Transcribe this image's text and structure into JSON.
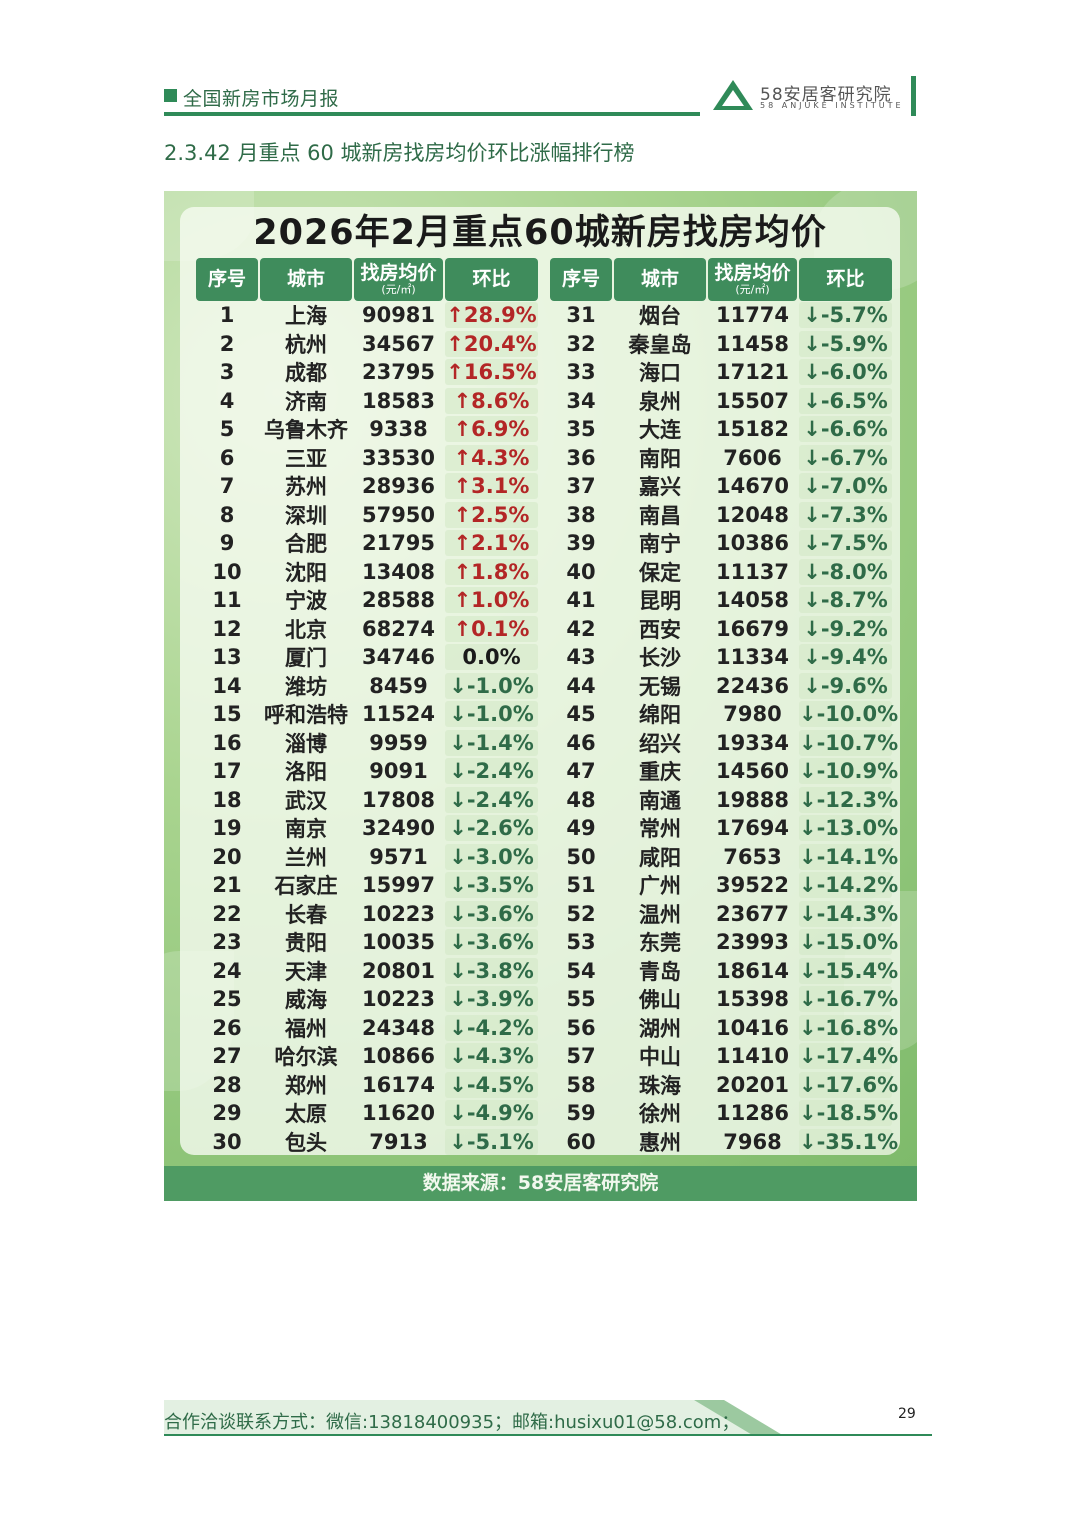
{
  "header": {
    "report_title": "全国新房市场月报",
    "logo_cn": "58安居客研究院",
    "logo_en": "58 ANJUKE INSTITUTE",
    "section_title": "2.3.42 月重点 60 城新房找房均价环比涨幅排行榜",
    "brand_color": "#2f8a58"
  },
  "infographic": {
    "title": "2026年2月重点60城新房找房均价",
    "columns": {
      "rank": "序号",
      "city": "城市",
      "price": "找房均价",
      "price_unit": "(元/㎡)",
      "change": "环比"
    },
    "rows": [
      {
        "rank": "1",
        "city": "上海",
        "price": "90981",
        "change": "↑28.9%",
        "dir": "up"
      },
      {
        "rank": "2",
        "city": "杭州",
        "price": "34567",
        "change": "↑20.4%",
        "dir": "up"
      },
      {
        "rank": "3",
        "city": "成都",
        "price": "23795",
        "change": "↑16.5%",
        "dir": "up"
      },
      {
        "rank": "4",
        "city": "济南",
        "price": "18583",
        "change": "↑8.6%",
        "dir": "up"
      },
      {
        "rank": "5",
        "city": "乌鲁木齐",
        "price": "9338",
        "change": "↑6.9%",
        "dir": "up"
      },
      {
        "rank": "6",
        "city": "三亚",
        "price": "33530",
        "change": "↑4.3%",
        "dir": "up"
      },
      {
        "rank": "7",
        "city": "苏州",
        "price": "28936",
        "change": "↑3.1%",
        "dir": "up"
      },
      {
        "rank": "8",
        "city": "深圳",
        "price": "57950",
        "change": "↑2.5%",
        "dir": "up"
      },
      {
        "rank": "9",
        "city": "合肥",
        "price": "21795",
        "change": "↑2.1%",
        "dir": "up"
      },
      {
        "rank": "10",
        "city": "沈阳",
        "price": "13408",
        "change": "↑1.8%",
        "dir": "up"
      },
      {
        "rank": "11",
        "city": "宁波",
        "price": "28588",
        "change": "↑1.0%",
        "dir": "up"
      },
      {
        "rank": "12",
        "city": "北京",
        "price": "68274",
        "change": "↑0.1%",
        "dir": "up"
      },
      {
        "rank": "13",
        "city": "厦门",
        "price": "34746",
        "change": "0.0%",
        "dir": "flat"
      },
      {
        "rank": "14",
        "city": "潍坊",
        "price": "8459",
        "change": "↓-1.0%",
        "dir": "down"
      },
      {
        "rank": "15",
        "city": "呼和浩特",
        "price": "11524",
        "change": "↓-1.0%",
        "dir": "down"
      },
      {
        "rank": "16",
        "city": "淄博",
        "price": "9959",
        "change": "↓-1.4%",
        "dir": "down"
      },
      {
        "rank": "17",
        "city": "洛阳",
        "price": "9091",
        "change": "↓-2.4%",
        "dir": "down"
      },
      {
        "rank": "18",
        "city": "武汉",
        "price": "17808",
        "change": "↓-2.4%",
        "dir": "down"
      },
      {
        "rank": "19",
        "city": "南京",
        "price": "32490",
        "change": "↓-2.6%",
        "dir": "down"
      },
      {
        "rank": "20",
        "city": "兰州",
        "price": "9571",
        "change": "↓-3.0%",
        "dir": "down"
      },
      {
        "rank": "21",
        "city": "石家庄",
        "price": "15997",
        "change": "↓-3.5%",
        "dir": "down"
      },
      {
        "rank": "22",
        "city": "长春",
        "price": "10223",
        "change": "↓-3.6%",
        "dir": "down"
      },
      {
        "rank": "23",
        "city": "贵阳",
        "price": "10035",
        "change": "↓-3.6%",
        "dir": "down"
      },
      {
        "rank": "24",
        "city": "天津",
        "price": "20801",
        "change": "↓-3.8%",
        "dir": "down"
      },
      {
        "rank": "25",
        "city": "威海",
        "price": "10223",
        "change": "↓-3.9%",
        "dir": "down"
      },
      {
        "rank": "26",
        "city": "福州",
        "price": "24348",
        "change": "↓-4.2%",
        "dir": "down"
      },
      {
        "rank": "27",
        "city": "哈尔滨",
        "price": "10866",
        "change": "↓-4.3%",
        "dir": "down"
      },
      {
        "rank": "28",
        "city": "郑州",
        "price": "16174",
        "change": "↓-4.5%",
        "dir": "down"
      },
      {
        "rank": "29",
        "city": "太原",
        "price": "11620",
        "change": "↓-4.9%",
        "dir": "down"
      },
      {
        "rank": "30",
        "city": "包头",
        "price": "7913",
        "change": "↓-5.1%",
        "dir": "down"
      },
      {
        "rank": "31",
        "city": "烟台",
        "price": "11774",
        "change": "↓-5.7%",
        "dir": "down"
      },
      {
        "rank": "32",
        "city": "秦皇岛",
        "price": "11458",
        "change": "↓-5.9%",
        "dir": "down"
      },
      {
        "rank": "33",
        "city": "海口",
        "price": "17121",
        "change": "↓-6.0%",
        "dir": "down"
      },
      {
        "rank": "34",
        "city": "泉州",
        "price": "15507",
        "change": "↓-6.5%",
        "dir": "down"
      },
      {
        "rank": "35",
        "city": "大连",
        "price": "15182",
        "change": "↓-6.6%",
        "dir": "down"
      },
      {
        "rank": "36",
        "city": "南阳",
        "price": "7606",
        "change": "↓-6.7%",
        "dir": "down"
      },
      {
        "rank": "37",
        "city": "嘉兴",
        "price": "14670",
        "change": "↓-7.0%",
        "dir": "down"
      },
      {
        "rank": "38",
        "city": "南昌",
        "price": "12048",
        "change": "↓-7.3%",
        "dir": "down"
      },
      {
        "rank": "39",
        "city": "南宁",
        "price": "10386",
        "change": "↓-7.5%",
        "dir": "down"
      },
      {
        "rank": "40",
        "city": "保定",
        "price": "11137",
        "change": "↓-8.0%",
        "dir": "down"
      },
      {
        "rank": "41",
        "city": "昆明",
        "price": "14058",
        "change": "↓-8.7%",
        "dir": "down"
      },
      {
        "rank": "42",
        "city": "西安",
        "price": "16679",
        "change": "↓-9.2%",
        "dir": "down"
      },
      {
        "rank": "43",
        "city": "长沙",
        "price": "11334",
        "change": "↓-9.4%",
        "dir": "down"
      },
      {
        "rank": "44",
        "city": "无锡",
        "price": "22436",
        "change": "↓-9.6%",
        "dir": "down"
      },
      {
        "rank": "45",
        "city": "绵阳",
        "price": "7980",
        "change": "↓-10.0%",
        "dir": "down"
      },
      {
        "rank": "46",
        "city": "绍兴",
        "price": "19334",
        "change": "↓-10.7%",
        "dir": "down"
      },
      {
        "rank": "47",
        "city": "重庆",
        "price": "14560",
        "change": "↓-10.9%",
        "dir": "down"
      },
      {
        "rank": "48",
        "city": "南通",
        "price": "19888",
        "change": "↓-12.3%",
        "dir": "down"
      },
      {
        "rank": "49",
        "city": "常州",
        "price": "17694",
        "change": "↓-13.0%",
        "dir": "down"
      },
      {
        "rank": "50",
        "city": "咸阳",
        "price": "7653",
        "change": "↓-14.1%",
        "dir": "down"
      },
      {
        "rank": "51",
        "city": "广州",
        "price": "39522",
        "change": "↓-14.2%",
        "dir": "down"
      },
      {
        "rank": "52",
        "city": "温州",
        "price": "23677",
        "change": "↓-14.3%",
        "dir": "down"
      },
      {
        "rank": "53",
        "city": "东莞",
        "price": "23993",
        "change": "↓-15.0%",
        "dir": "down"
      },
      {
        "rank": "54",
        "city": "青岛",
        "price": "18614",
        "change": "↓-15.4%",
        "dir": "down"
      },
      {
        "rank": "55",
        "city": "佛山",
        "price": "15398",
        "change": "↓-16.7%",
        "dir": "down"
      },
      {
        "rank": "56",
        "city": "湖州",
        "price": "10416",
        "change": "↓-16.8%",
        "dir": "down"
      },
      {
        "rank": "57",
        "city": "中山",
        "price": "11410",
        "change": "↓-17.4%",
        "dir": "down"
      },
      {
        "rank": "58",
        "city": "珠海",
        "price": "20201",
        "change": "↓-17.6%",
        "dir": "down"
      },
      {
        "rank": "59",
        "city": "徐州",
        "price": "11286",
        "change": "↓-18.5%",
        "dir": "down"
      },
      {
        "rank": "60",
        "city": "惠州",
        "price": "7968",
        "change": "↓-35.1%",
        "dir": "down"
      }
    ],
    "source": "数据来源：58安居客研究院",
    "colors": {
      "up": "#b32626",
      "down": "#2f6b48",
      "header_bg": "#3f8c5c"
    }
  },
  "footer": {
    "contact": "合作洽谈联系方式：微信:13818400935；邮箱:husixu01@58.com；",
    "page_number": "29"
  }
}
